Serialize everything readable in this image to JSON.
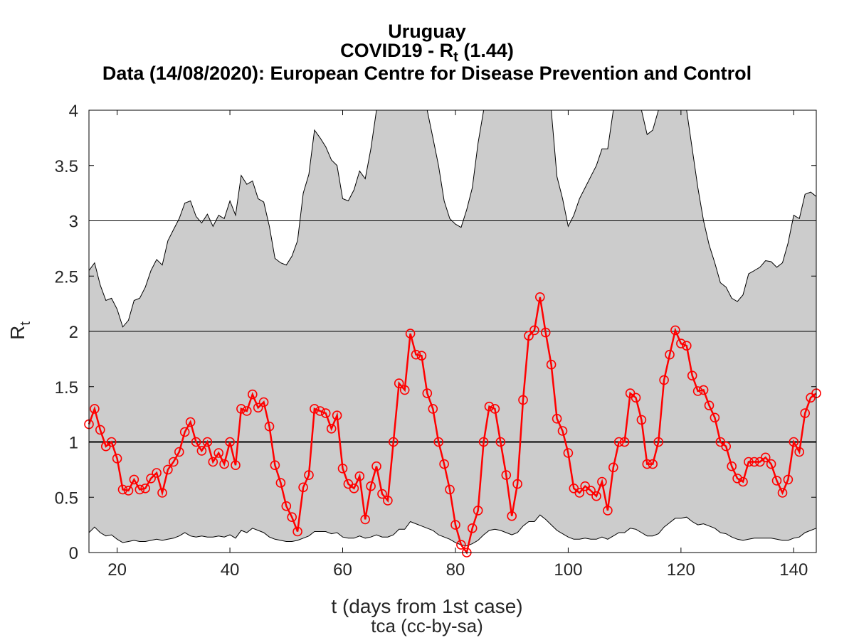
{
  "chart_data": {
    "type": "line",
    "title": {
      "line1": "Uruguay",
      "line2_prefix": "COVID19 - R",
      "line2_sub": "t",
      "line2_suffix": " (1.44)",
      "line3": "Data (14/08/2020): European Centre for Disease Prevention and Control"
    },
    "xlabel": "t (days from 1st case)",
    "ylabel": "R",
    "ylabel_sub": "t",
    "footer": "tca (cc-by-sa)",
    "xlim": [
      15,
      144
    ],
    "ylim": [
      0,
      4
    ],
    "xticks": [
      20,
      40,
      60,
      80,
      100,
      120,
      140
    ],
    "yticks": [
      0,
      0.5,
      1,
      1.5,
      2,
      2.5,
      3,
      3.5,
      4
    ],
    "ytick_labels": [
      "0",
      "0.5",
      "1",
      "1.5",
      "2",
      "2.5",
      "3",
      "3.5",
      "4"
    ],
    "reference_lines": [
      1,
      2,
      3
    ],
    "colors": {
      "series": "#ff0000",
      "band": "#cccccc",
      "axis": "#000000"
    },
    "series": [
      {
        "x": [
          15,
          16,
          17,
          18,
          19,
          20,
          21,
          22,
          23,
          24,
          25,
          26,
          27,
          28,
          29,
          30,
          31,
          32,
          33,
          34,
          35,
          36,
          37,
          38,
          39,
          40,
          41,
          42,
          43,
          44,
          45,
          46,
          47,
          48,
          49,
          50,
          51,
          52,
          53,
          54,
          55,
          56,
          57,
          58,
          59,
          60,
          61,
          62,
          63,
          64,
          65,
          66,
          67,
          68,
          69,
          70,
          71,
          72,
          73,
          74,
          75,
          76,
          77,
          78,
          79,
          80,
          81,
          82,
          83,
          84,
          85,
          86,
          87,
          88,
          89,
          90,
          91,
          92,
          93,
          94,
          95,
          96,
          97,
          98,
          99,
          100,
          101,
          102,
          103,
          104,
          105,
          106,
          107,
          108,
          109,
          110,
          111,
          112,
          113,
          114,
          115,
          116,
          117,
          118,
          119,
          120,
          121,
          122,
          123,
          124,
          125,
          126,
          127,
          128,
          129,
          130,
          131,
          132,
          133,
          134,
          135,
          136,
          137,
          138,
          139,
          140,
          141,
          142,
          143,
          144
        ],
        "values": [
          1.16,
          1.3,
          1.11,
          0.96,
          1.0,
          0.85,
          0.57,
          0.56,
          0.66,
          0.57,
          0.58,
          0.67,
          0.72,
          0.54,
          0.75,
          0.82,
          0.91,
          1.09,
          1.18,
          1.0,
          0.92,
          1.0,
          0.82,
          0.9,
          0.8,
          1.0,
          0.79,
          1.3,
          1.28,
          1.43,
          1.31,
          1.36,
          1.14,
          0.79,
          0.63,
          0.42,
          0.32,
          0.19,
          0.59,
          0.7,
          1.3,
          1.28,
          1.26,
          1.12,
          1.24,
          0.76,
          0.62,
          0.58,
          0.69,
          0.3,
          0.6,
          0.78,
          0.53,
          0.47,
          1.0,
          1.53,
          1.47,
          1.98,
          1.79,
          1.78,
          1.44,
          1.3,
          1.0,
          0.8,
          0.57,
          0.25,
          0.07,
          0.0,
          0.22,
          0.38,
          1.0,
          1.32,
          1.3,
          1.0,
          0.7,
          0.33,
          0.62,
          1.38,
          1.96,
          2.01,
          2.31,
          1.99,
          1.7,
          1.21,
          1.1,
          0.9,
          0.58,
          0.54,
          0.6,
          0.56,
          0.51,
          0.64,
          0.38,
          0.77,
          1.0,
          1.0,
          1.44,
          1.4,
          1.2,
          0.8,
          0.8,
          1.0,
          1.56,
          1.79,
          2.01,
          1.89,
          1.87,
          1.6,
          1.46,
          1.47,
          1.33,
          1.22,
          1.0,
          0.96,
          0.78,
          0.67,
          0.64,
          0.82,
          0.82,
          0.82,
          0.86,
          0.8,
          0.65,
          0.54,
          0.66,
          1.0,
          0.91,
          1.26,
          1.4,
          1.44
        ]
      }
    ],
    "band": {
      "upper": [
        2.55,
        2.62,
        2.42,
        2.28,
        2.3,
        2.2,
        2.04,
        2.1,
        2.28,
        2.3,
        2.4,
        2.55,
        2.65,
        2.6,
        2.82,
        2.92,
        3.02,
        3.16,
        3.18,
        3.04,
        2.98,
        3.06,
        2.95,
        3.05,
        3.02,
        3.18,
        3.05,
        3.41,
        3.33,
        3.36,
        3.2,
        3.17,
        2.95,
        2.66,
        2.62,
        2.6,
        2.68,
        2.82,
        3.25,
        3.42,
        3.82,
        3.75,
        3.67,
        3.55,
        3.5,
        3.2,
        3.18,
        3.28,
        3.45,
        3.38,
        3.65,
        4.0,
        4.0,
        4.0,
        4.0,
        4.0,
        4.0,
        4.0,
        4.0,
        4.0,
        4.0,
        3.75,
        3.5,
        3.18,
        3.02,
        2.97,
        2.94,
        3.1,
        3.3,
        3.7,
        4.0,
        4.0,
        4.0,
        4.0,
        4.0,
        4.0,
        4.0,
        4.0,
        4.0,
        4.0,
        4.0,
        4.0,
        4.0,
        3.4,
        3.2,
        2.95,
        3.05,
        3.2,
        3.3,
        3.4,
        3.5,
        3.65,
        3.65,
        4.0,
        4.0,
        4.0,
        4.0,
        4.0,
        4.0,
        3.78,
        3.82,
        4.0,
        4.0,
        4.0,
        4.0,
        4.0,
        4.0,
        3.65,
        3.3,
        3.0,
        2.78,
        2.62,
        2.44,
        2.4,
        2.3,
        2.27,
        2.33,
        2.52,
        2.55,
        2.58,
        2.64,
        2.63,
        2.58,
        2.62,
        2.8,
        3.05,
        3.02,
        3.24,
        3.26,
        3.22
      ],
      "lower": [
        0.18,
        0.23,
        0.18,
        0.15,
        0.16,
        0.12,
        0.09,
        0.1,
        0.11,
        0.1,
        0.1,
        0.11,
        0.12,
        0.11,
        0.12,
        0.13,
        0.15,
        0.18,
        0.15,
        0.14,
        0.15,
        0.14,
        0.14,
        0.15,
        0.14,
        0.16,
        0.13,
        0.2,
        0.18,
        0.22,
        0.2,
        0.18,
        0.14,
        0.12,
        0.11,
        0.1,
        0.1,
        0.11,
        0.13,
        0.15,
        0.19,
        0.19,
        0.19,
        0.17,
        0.18,
        0.14,
        0.13,
        0.13,
        0.15,
        0.13,
        0.14,
        0.16,
        0.14,
        0.14,
        0.16,
        0.21,
        0.21,
        0.28,
        0.26,
        0.24,
        0.22,
        0.2,
        0.16,
        0.14,
        0.12,
        0.09,
        0.07,
        0.06,
        0.08,
        0.11,
        0.16,
        0.2,
        0.21,
        0.2,
        0.18,
        0.16,
        0.18,
        0.24,
        0.28,
        0.28,
        0.34,
        0.3,
        0.25,
        0.2,
        0.17,
        0.14,
        0.12,
        0.12,
        0.13,
        0.12,
        0.12,
        0.14,
        0.12,
        0.15,
        0.18,
        0.18,
        0.22,
        0.21,
        0.18,
        0.15,
        0.15,
        0.17,
        0.23,
        0.27,
        0.31,
        0.31,
        0.32,
        0.28,
        0.25,
        0.26,
        0.24,
        0.22,
        0.18,
        0.17,
        0.14,
        0.12,
        0.11,
        0.12,
        0.13,
        0.13,
        0.13,
        0.13,
        0.12,
        0.11,
        0.11,
        0.13,
        0.14,
        0.18,
        0.2,
        0.22
      ]
    }
  }
}
